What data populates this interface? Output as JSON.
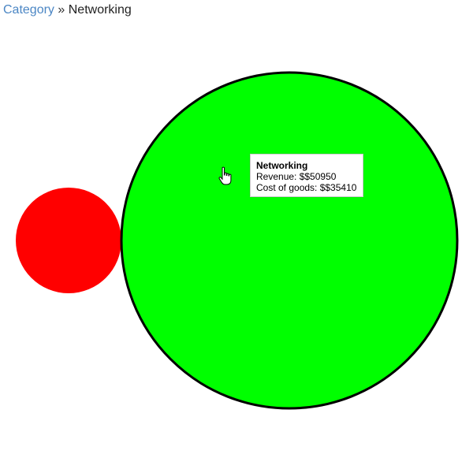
{
  "breadcrumb": {
    "parent_link": "Category",
    "separator": "»",
    "current": "Networking"
  },
  "chart_data": {
    "type": "bubble",
    "title": "",
    "nodes": [
      {
        "name": "Networking",
        "color": "#00ff00",
        "revenue": 50950,
        "cost_of_goods": 35410,
        "stroke": "#000000",
        "highlighted": true
      },
      {
        "name": "",
        "color": "#ff0000",
        "highlighted": false
      }
    ]
  },
  "tooltip": {
    "title": "Networking",
    "revenue_line": "Revenue: $$50950",
    "cost_line": "Cost of goods: $$35410"
  },
  "cursor": {
    "icon": "hand-pointer-icon"
  }
}
